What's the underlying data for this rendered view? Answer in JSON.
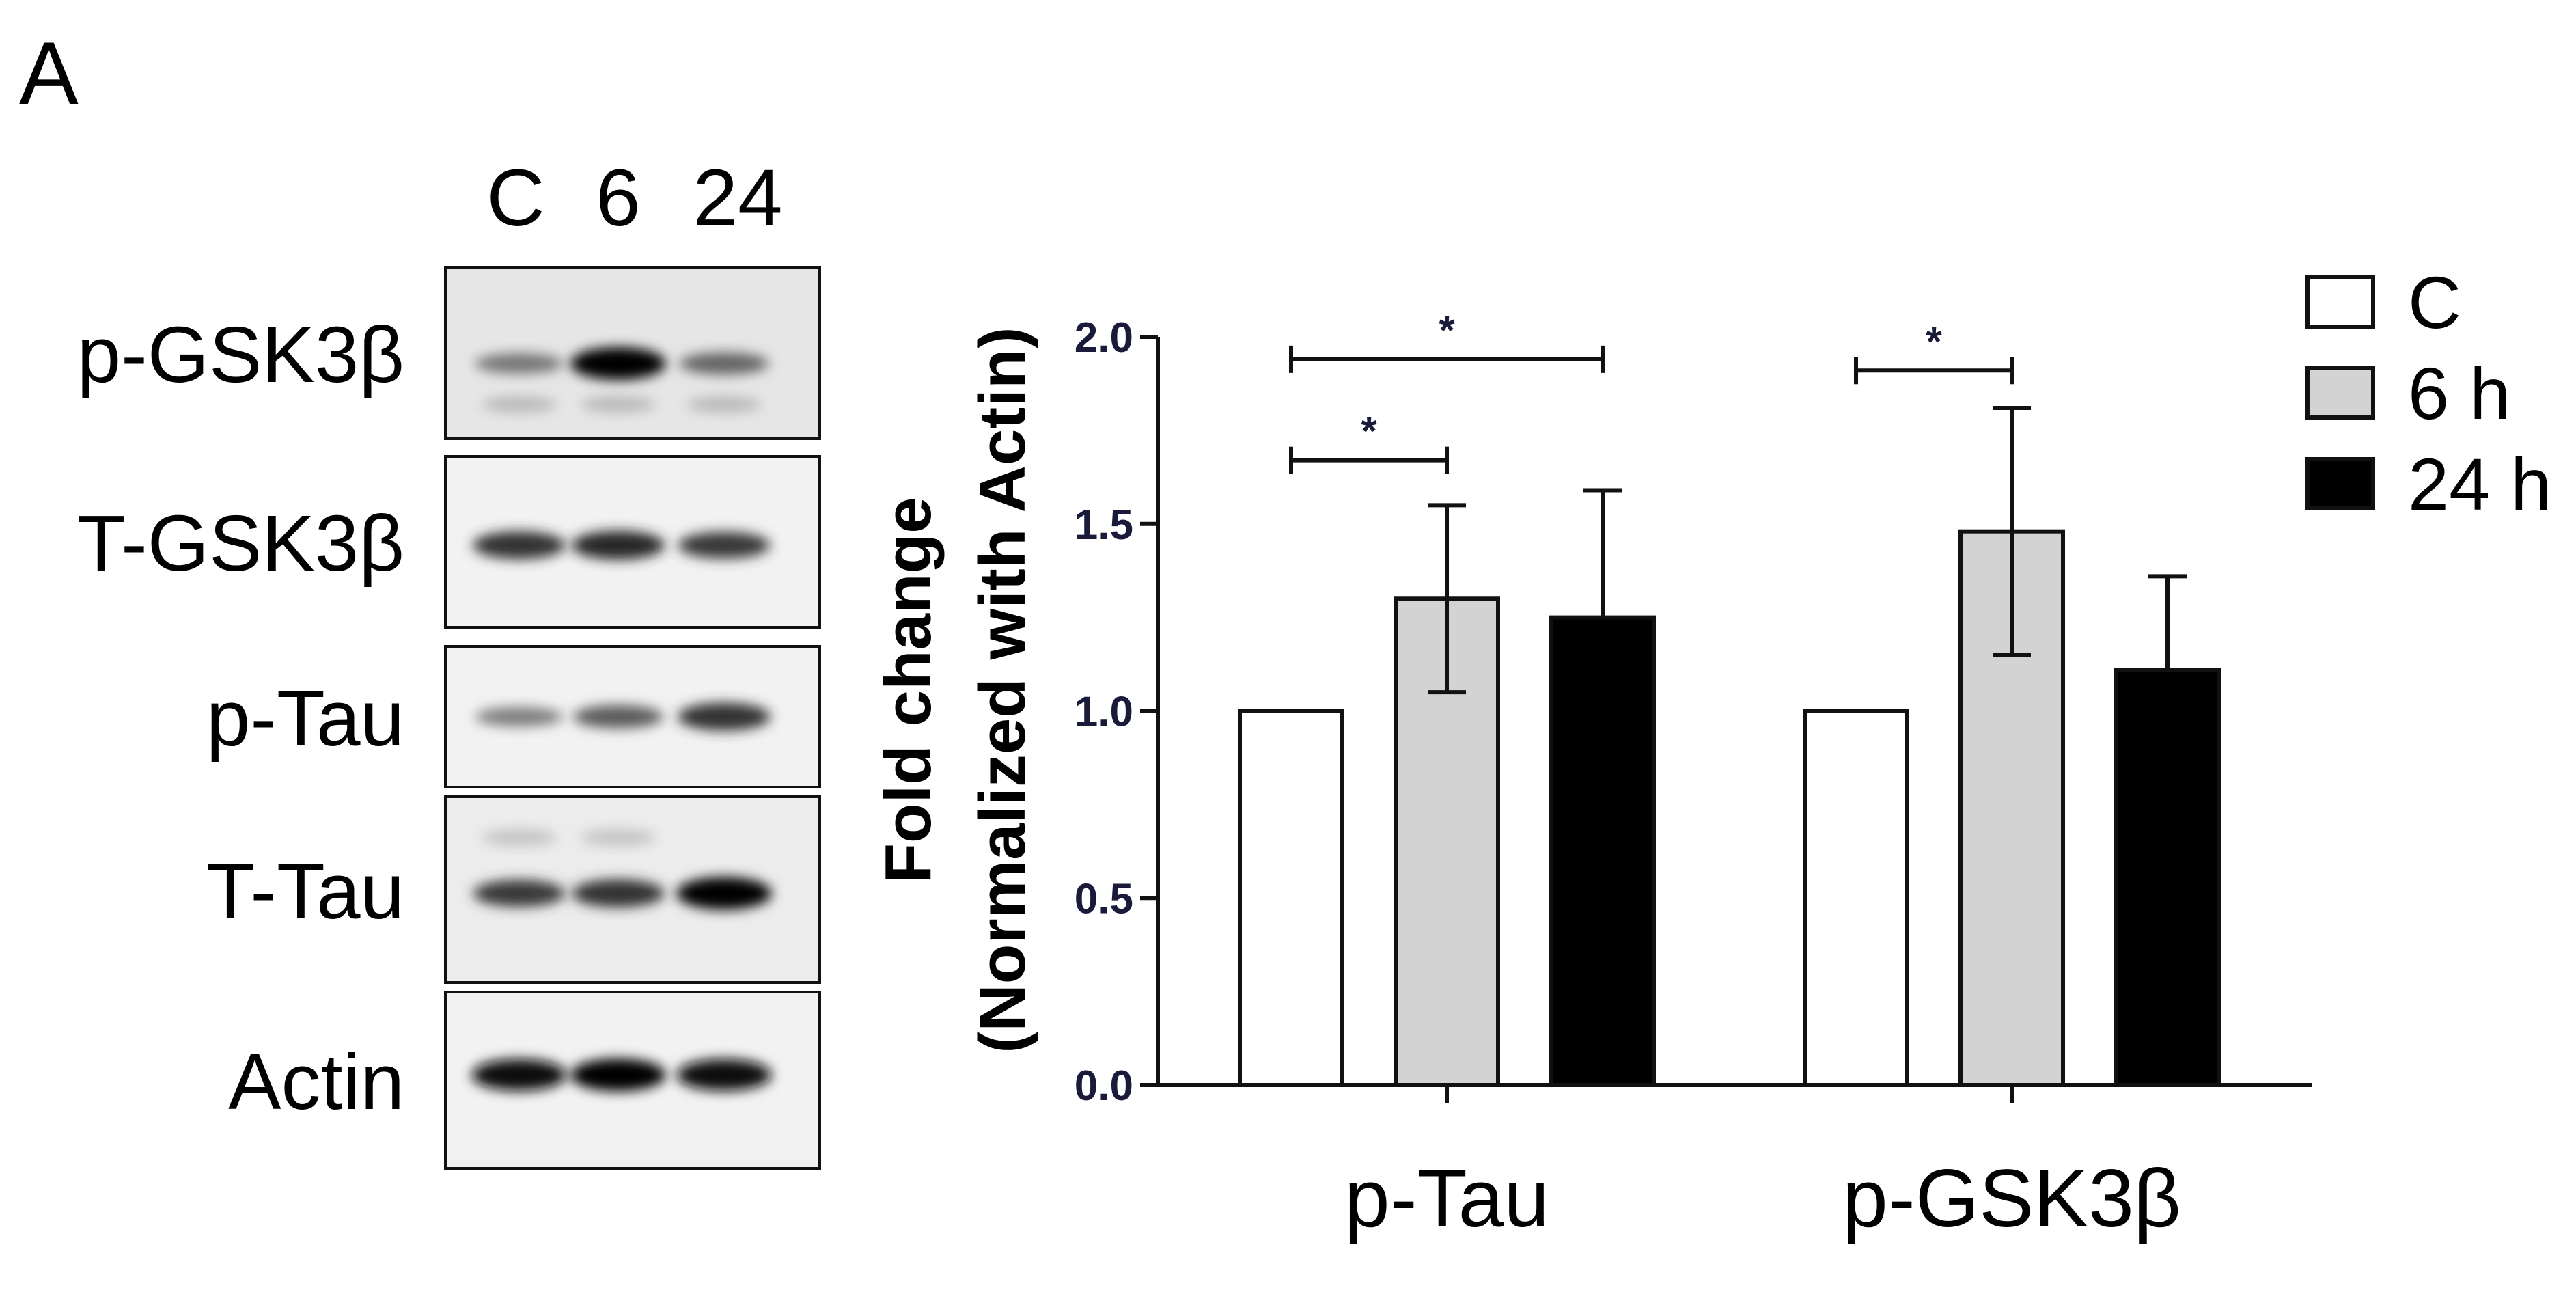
{
  "panel_label": "A",
  "blot": {
    "lane_labels": [
      "C",
      "6",
      "24"
    ],
    "rows": [
      {
        "label": "p-GSK3β",
        "bands": [
          0.35,
          1.0,
          0.45
        ]
      },
      {
        "label": "T-GSK3β",
        "bands": [
          0.75,
          0.8,
          0.7
        ]
      },
      {
        "label": "p-Tau",
        "bands": [
          0.3,
          0.5,
          0.75
        ]
      },
      {
        "label": "T-Tau",
        "bands": [
          0.7,
          0.75,
          1.0
        ]
      },
      {
        "label": "Actin",
        "bands": [
          0.95,
          1.0,
          0.95
        ]
      }
    ]
  },
  "chart_data": {
    "type": "bar",
    "ylabel_line1": "Fold change",
    "ylabel_line2": "(Normalized with Actin)",
    "ylim": [
      0,
      2.0
    ],
    "yticks": [
      0.0,
      0.5,
      1.0,
      1.5,
      2.0
    ],
    "ytick_labels": [
      "0.0",
      "0.5",
      "1.0",
      "1.5",
      "2.0"
    ],
    "categories": [
      "p-Tau",
      "p-GSK3β"
    ],
    "series": [
      {
        "name": "C",
        "values": [
          1.0,
          1.0
        ],
        "errors": [
          0,
          0
        ],
        "color": "#ffffff"
      },
      {
        "name": "6 h",
        "values": [
          1.3,
          1.48
        ],
        "errors": [
          0.25,
          0.33
        ],
        "color": "#d3d3d3"
      },
      {
        "name": "24 h",
        "values": [
          1.25,
          1.11
        ],
        "errors": [
          0.34,
          0.25
        ],
        "color": "#000000"
      }
    ],
    "significance": [
      {
        "category": 0,
        "from": 0,
        "to": 2,
        "y": 1.94,
        "label": "*"
      },
      {
        "category": 0,
        "from": 0,
        "to": 1,
        "y": 1.67,
        "label": "*"
      },
      {
        "category": 1,
        "from": 0,
        "to": 1,
        "y": 1.91,
        "label": "*"
      }
    ],
    "legend_position": "top-right",
    "grid": false
  }
}
